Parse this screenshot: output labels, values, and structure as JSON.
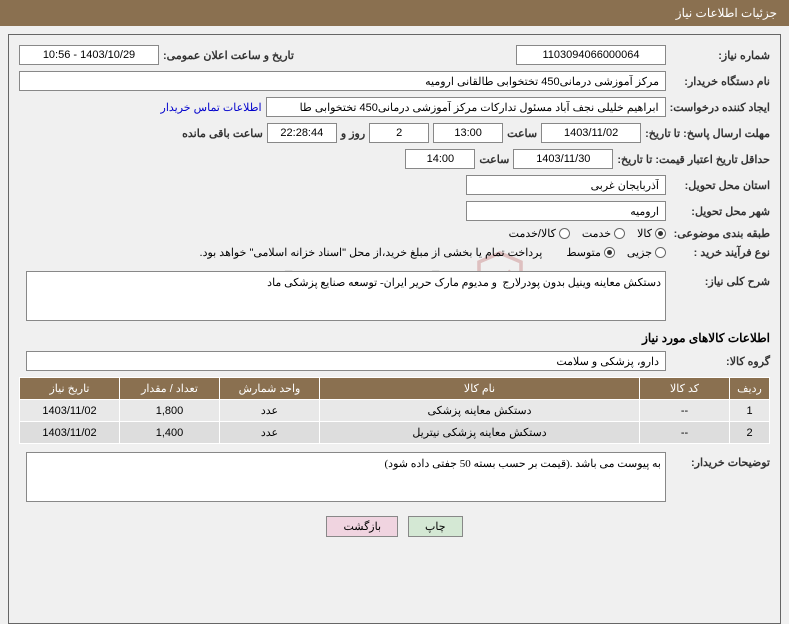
{
  "header": {
    "title": "جزئیات اطلاعات نیاز"
  },
  "form": {
    "need_number_label": "شماره نیاز:",
    "need_number": "1103094066000064",
    "announce_datetime_label": "تاریخ و ساعت اعلان عمومی:",
    "announce_datetime": "1403/10/29 - 10:56",
    "buyer_org_label": "نام دستگاه خریدار:",
    "buyer_org": "مرکز آموزشی درمانی450 تختخوابی طالقانی ارومیه",
    "requester_label": "ایجاد کننده درخواست:",
    "requester": "ابراهیم خلیلی نجف آباد مسئول تدارکات مرکز آموزشی درمانی450 تختخوابی طا",
    "buyer_contact_link": "اطلاعات تماس خریدار",
    "response_deadline_label": "مهلت ارسال پاسخ: تا تاریخ:",
    "response_date": "1403/11/02",
    "time_label": "ساعت",
    "response_time": "13:00",
    "days_value": "2",
    "days_and_label": "روز و",
    "countdown": "22:28:44",
    "remaining_label": "ساعت باقی مانده",
    "min_price_validity_label": "حداقل تاریخ اعتبار قیمت: تا تاریخ:",
    "price_validity_date": "1403/11/30",
    "price_validity_time": "14:00",
    "delivery_province_label": "استان محل تحویل:",
    "delivery_province": "آذربایجان غربی",
    "delivery_city_label": "شهر محل تحویل:",
    "delivery_city": "ارومیه",
    "category_label": "طبقه بندی موضوعی:",
    "cat_goods": "کالا",
    "cat_service": "خدمت",
    "cat_goods_service": "کالا/خدمت",
    "purchase_type_label": "نوع فرآیند خرید :",
    "type_small": "جزیی",
    "type_medium": "متوسط",
    "payment_note": "پرداخت تمام یا بخشی از مبلغ خرید،از محل \"اسناد خزانه اسلامی\" خواهد بود.",
    "general_desc_label": "شرح کلی نیاز:",
    "general_desc": "دستکش معاینه وینیل بدون پودرلارج  و مدیوم مارک حریر ایران- توسعه صنایع پزشکی ماد",
    "goods_info_title": "اطلاعات کالاهای مورد نیاز",
    "goods_group_label": "گروه کالا:",
    "goods_group": "دارو، پزشکی و سلامت",
    "buyer_notes_label": "توضیحات خریدار:",
    "buyer_notes": "به پیوست می باشد .(قیمت بر حسب بسته 50 جفتی داده شود)"
  },
  "table": {
    "columns": [
      "ردیف",
      "کد کالا",
      "نام کالا",
      "واحد شمارش",
      "تعداد / مقدار",
      "تاریخ نیاز"
    ],
    "rows": [
      [
        "1",
        "--",
        "دستکش معاینه پزشکی",
        "عدد",
        "1,800",
        "1403/11/02"
      ],
      [
        "2",
        "--",
        "دستکش معاینه پزشکی نیتریل",
        "عدد",
        "1,400",
        "1403/11/02"
      ]
    ]
  },
  "buttons": {
    "print": "چاپ",
    "back": "بازگشت"
  },
  "watermark": "AriaTender.net",
  "colors": {
    "header_bg": "#8a7050",
    "row_bg": "#e8e8e8"
  }
}
